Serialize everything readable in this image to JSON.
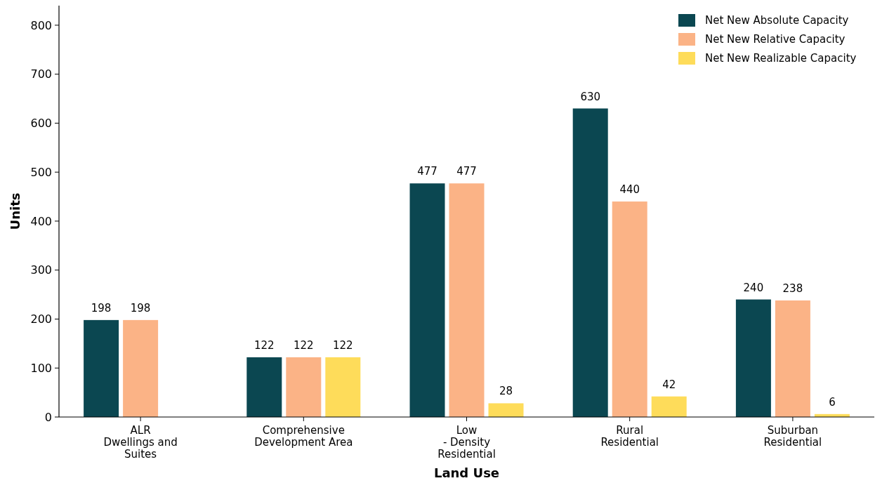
{
  "chart_data": {
    "type": "bar",
    "xlabel": "Land Use",
    "ylabel": "Units",
    "categories": [
      "ALR\nDwellings and\nSuites",
      "Comprehensive\nDevelopment Area",
      "Low\n- Density\nResidential",
      "Rural\nResidential",
      "Suburban\nResidential"
    ],
    "series": [
      {
        "name": "Net New Absolute Capacity",
        "color": "#0b4751",
        "values": [
          198,
          122,
          477,
          630,
          240
        ]
      },
      {
        "name": "Net New Relative Capacity",
        "color": "#fbb386",
        "values": [
          198,
          122,
          477,
          440,
          238
        ]
      },
      {
        "name": "Net New Realizable Capacity",
        "color": "#fedc5a",
        "values": [
          null,
          122,
          28,
          42,
          6
        ]
      }
    ],
    "ylim": [
      0,
      840
    ],
    "yticks": [
      0,
      100,
      200,
      300,
      400,
      500,
      600,
      700,
      800
    ],
    "data_labels": true,
    "legend": "top right",
    "grid": false
  }
}
